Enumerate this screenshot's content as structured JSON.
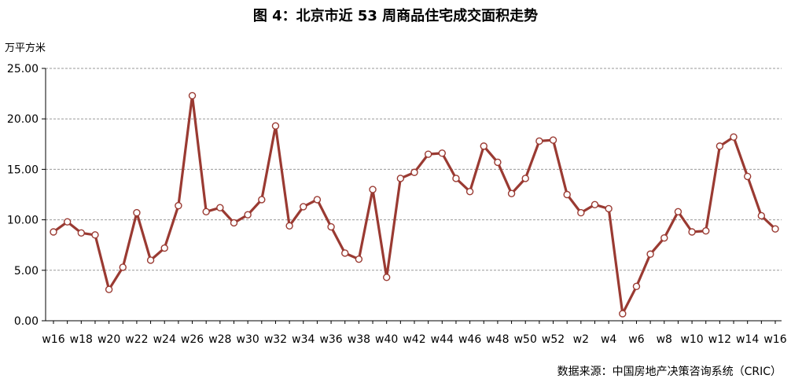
{
  "chart_data": {
    "type": "line",
    "title": "图 4：北京市近 53 周商品住宅成交面积走势",
    "ylabel": "万平方米",
    "source": "数据来源：中国房地产决策咨询系统（CRIC）",
    "ylim": [
      0,
      25
    ],
    "yticks": [
      "0.00",
      "5.00",
      "10.00",
      "15.00",
      "20.00",
      "25.00"
    ],
    "grid": true,
    "line_color": "#9a3a32",
    "x": [
      "w16",
      "w17",
      "w18",
      "w19",
      "w20",
      "w21",
      "w22",
      "w23",
      "w24",
      "w25",
      "w26",
      "w27",
      "w28",
      "w29",
      "w30",
      "w31",
      "w32",
      "w33",
      "w34",
      "w35",
      "w36",
      "w37",
      "w38",
      "w39",
      "w40",
      "w41",
      "w42",
      "w43",
      "w44",
      "w45",
      "w46",
      "w47",
      "w48",
      "w49",
      "w50",
      "w51",
      "w52",
      "w1",
      "w2",
      "w3",
      "w4",
      "w5",
      "w6",
      "w7",
      "w8",
      "w9",
      "w10",
      "w11",
      "w12",
      "w13",
      "w14",
      "w15",
      "w16"
    ],
    "xtick_labels": [
      "w16",
      "",
      "w18",
      "",
      "w20",
      "",
      "w22",
      "",
      "w24",
      "",
      "w26",
      "",
      "w28",
      "",
      "w30",
      "",
      "w32",
      "",
      "w34",
      "",
      "w36",
      "",
      "w38",
      "",
      "w40",
      "",
      "w42",
      "",
      "w44",
      "",
      "w46",
      "",
      "w48",
      "",
      "w50",
      "",
      "w52",
      "",
      "w2",
      "",
      "w4",
      "",
      "w6",
      "",
      "w8",
      "",
      "w10",
      "",
      "w12",
      "",
      "w14",
      "",
      "w16"
    ],
    "series": [
      {
        "values": [
          8.8,
          9.8,
          8.7,
          8.5,
          3.1,
          5.3,
          10.7,
          6.0,
          7.2,
          11.4,
          22.3,
          10.8,
          11.2,
          9.7,
          10.5,
          12.0,
          19.3,
          9.4,
          11.3,
          12.0,
          9.3,
          6.7,
          6.1,
          13.0,
          4.3,
          14.1,
          14.7,
          16.5,
          16.6,
          14.1,
          12.8,
          17.3,
          15.7,
          12.6,
          14.1,
          17.8,
          17.9,
          12.5,
          10.7,
          11.5,
          11.1,
          0.7,
          3.4,
          6.6,
          8.2,
          10.8,
          8.8,
          8.9,
          17.3,
          18.2,
          14.3,
          10.4,
          9.1
        ]
      }
    ]
  }
}
